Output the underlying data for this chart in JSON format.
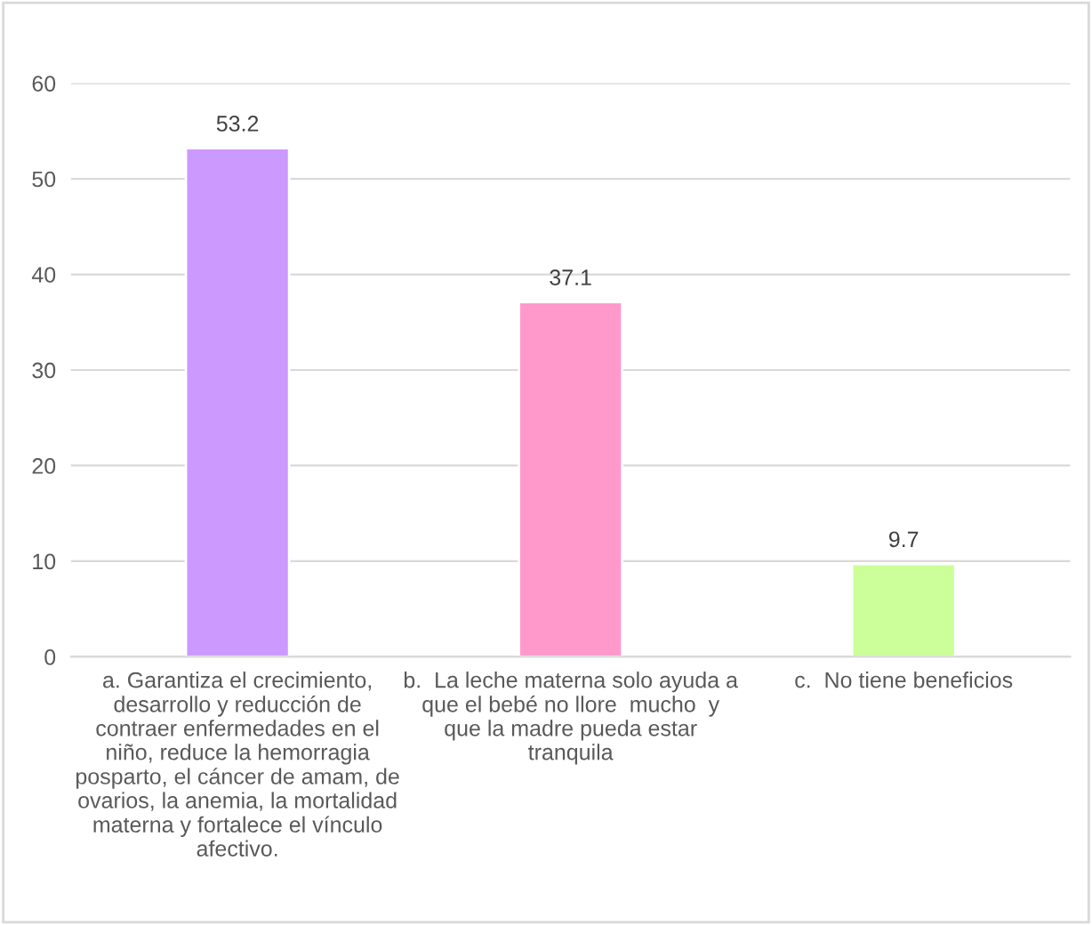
{
  "chart_data": {
    "type": "bar",
    "categories": [
      "a. Garantiza el crecimiento,\ndesarrollo y reducción de\ncontraer enfermedades en el\nniño, reduce la hemorragia\nposparto, el cáncer de amam, de\novarios, la anemia, la mortalidad\nmaterna y fortalece el vínculo\nafectivo.",
      "b.  La leche materna solo ayuda a\nque el bebé no llore  mucho  y\nque la madre pueda estar\ntranquila",
      "c.  No tiene beneficios"
    ],
    "values": [
      53.2,
      37.1,
      9.7
    ],
    "colors": [
      "#cc99ff",
      "#ff99cc",
      "#ccff99"
    ],
    "ylim": [
      0,
      60
    ],
    "yticks": [
      0,
      10,
      20,
      30,
      40,
      50,
      60
    ],
    "grid": "y",
    "data_labels": true
  }
}
